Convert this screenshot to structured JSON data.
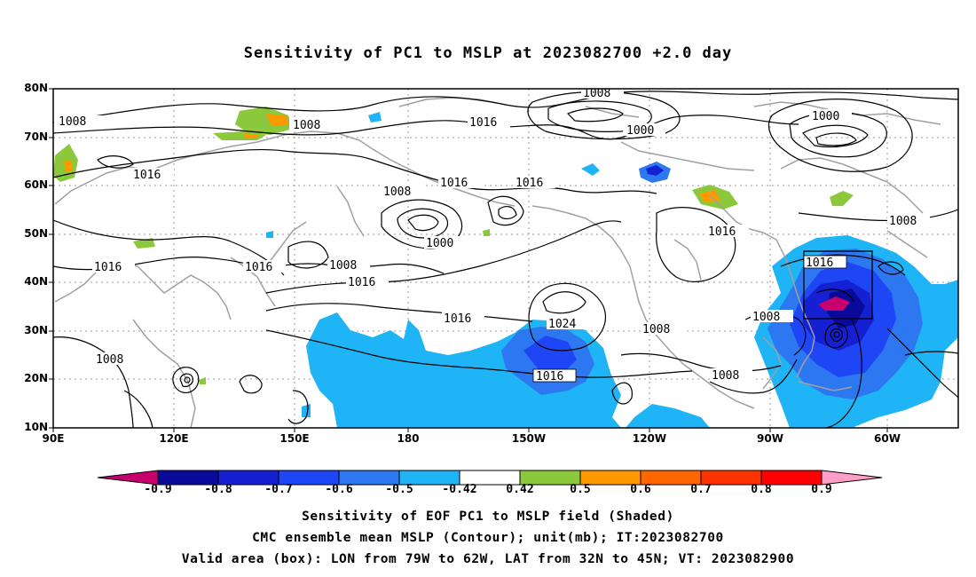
{
  "title": "Sensitivity of PC1 to MSLP at 2023082700 +2.0 day",
  "y_axis_labels": [
    "80N",
    "70N",
    "60N",
    "50N",
    "40N",
    "30N",
    "20N",
    "10N"
  ],
  "x_axis_labels": [
    "90E",
    "120E",
    "150E",
    "180",
    "150W",
    "120W",
    "90W",
    "60W"
  ],
  "contour_labels": {
    "l01": "1008",
    "l02": "1008",
    "l03": "1008",
    "l04": "1000",
    "l05": "1016",
    "l06": "1016",
    "l07": "1008",
    "l08": "1016",
    "l09": "1016",
    "l10": "1000",
    "l11": "1000",
    "l12": "1008",
    "l13": "1016",
    "l14": "1016",
    "l15": "1016",
    "l16": "1008",
    "l17": "1016",
    "l18": "1024",
    "l19": "1008",
    "l20": "1016",
    "l21": "1008",
    "l22": "1016",
    "l23": "1008",
    "l24": "1008",
    "l25": "1016"
  },
  "colorbar": {
    "labels": [
      "-0.9",
      "-0.8",
      "-0.7",
      "-0.6",
      "-0.5",
      "-0.42",
      "0.42",
      "0.5",
      "0.6",
      "0.7",
      "0.8",
      "0.9"
    ],
    "colors": [
      "#c8006e",
      "#0a0a9a",
      "#1420d2",
      "#1e46f5",
      "#2d78f0",
      "#1eb4f5",
      "#ffffff",
      "#8cc83c",
      "#ff9900",
      "#ff6600",
      "#ff3300",
      "#ff0000",
      "#ff9ec8"
    ]
  },
  "captions": [
    "Sensitivity of EOF PC1 to MSLP field (Shaded)",
    "CMC ensemble mean MSLP (Contour); unit(mb); IT:2023082700",
    "Valid area (box): LON from 79W to 62W, LAT from 32N to 45N; VT: 2023082900"
  ]
}
